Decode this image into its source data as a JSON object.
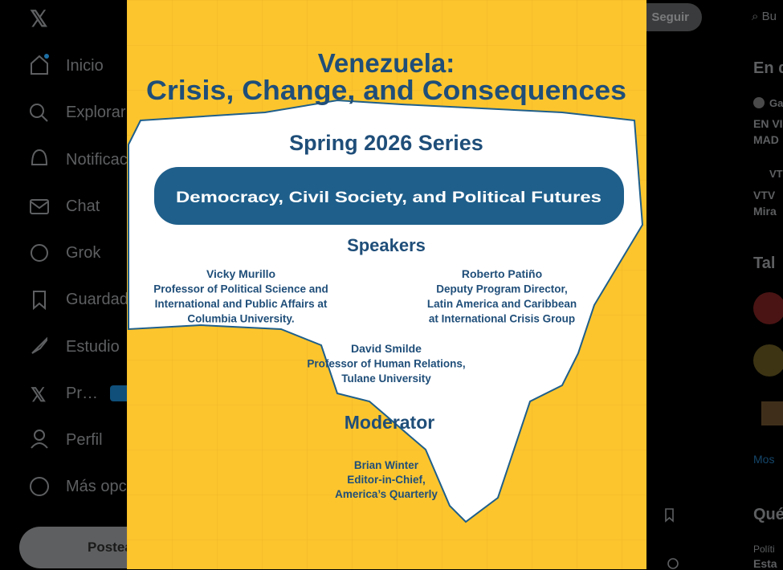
{
  "nav": {
    "items": [
      "Inicio",
      "Explorar",
      "Notificaciones",
      "Chat",
      "Grok",
      "Guardados",
      "Estudio",
      "Pr…",
      "Perfil",
      "Más opciones"
    ],
    "post_button": "Postear"
  },
  "header": {
    "follow_button": "Seguir",
    "search": "Bu"
  },
  "sidebar": {
    "section_1": "En d",
    "item_1_source": "Ga",
    "item_1_lines": [
      "EN VI",
      "MAD"
    ],
    "item_2_source": "VT",
    "item_2_lines": [
      "VTV",
      "Mira"
    ],
    "section_2": "Tal",
    "show_more": "Mos",
    "section_3": "Qué",
    "item_3_category": "Políti",
    "item_3_title": "Esta"
  },
  "poster": {
    "title": "Venezuela:",
    "subtitle": "Crisis, Change, and Consequences",
    "series": "Spring 2026 Series",
    "banner": "Democracy, Civil Society, and Political Futures",
    "speakers_heading": "Speakers",
    "speakers": [
      {
        "name": "Vicky Murillo",
        "lines": [
          "Professor of Political Science and",
          "International and Public Affairs at",
          "Columbia University."
        ]
      },
      {
        "name": "Roberto Patiño",
        "lines": [
          "Deputy Program Director,",
          "Latin America and Caribbean",
          "at International Crisis Group"
        ]
      },
      {
        "name": "David Smilde",
        "lines": [
          "Professor of Human Relations,",
          "Tulane University"
        ]
      }
    ],
    "moderator_heading": "Moderator",
    "moderator": {
      "name": "Brian Winter",
      "lines": [
        "Editor-in-Chief,",
        "America’s Quarterly"
      ]
    }
  }
}
